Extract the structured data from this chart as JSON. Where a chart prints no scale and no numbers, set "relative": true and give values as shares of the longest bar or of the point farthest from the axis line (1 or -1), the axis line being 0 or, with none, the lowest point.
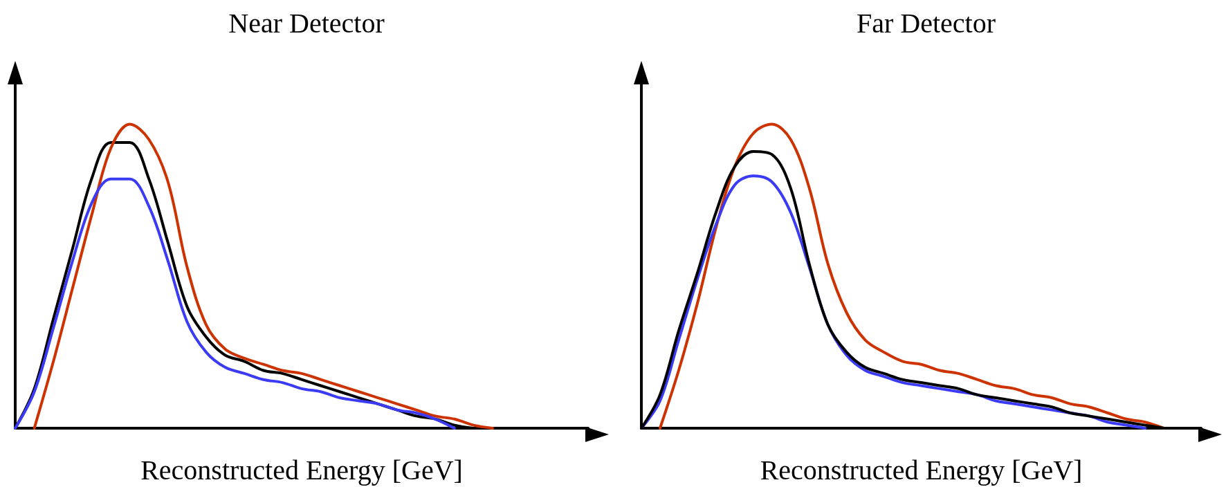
{
  "chart_data": [
    {
      "type": "line",
      "title": "Near Detector",
      "xlabel": "Reconstructed Energy [GeV]",
      "relative": true,
      "line_style": "solid",
      "categories": [
        null,
        null,
        null,
        null,
        null,
        null,
        null,
        null,
        null,
        null,
        null,
        null,
        null,
        null,
        null,
        null,
        null,
        null,
        null,
        null,
        null,
        null,
        null,
        null,
        null,
        null,
        null,
        null,
        null,
        null,
        null
      ],
      "series": [
        {
          "color": "#000000",
          "values": [
            0,
            0.13,
            0.36,
            0.59,
            0.82,
            0.94,
            0.94,
            0.82,
            0.61,
            0.4,
            0.3,
            0.24,
            0.22,
            0.19,
            0.18,
            0.16,
            0.14,
            0.12,
            0.1,
            0.08,
            0.06,
            0.04,
            0.03,
            0.01,
            0,
            null,
            null,
            null,
            null,
            null,
            null
          ]
        },
        {
          "color": "#cc3300",
          "values": [
            null,
            0,
            0.22,
            0.46,
            0.7,
            0.92,
            1,
            0.95,
            0.81,
            0.53,
            0.34,
            0.26,
            0.23,
            0.21,
            0.19,
            0.18,
            0.16,
            0.14,
            0.12,
            0.1,
            0.08,
            0.06,
            0.04,
            0.03,
            0.01,
            0,
            null,
            null,
            null,
            null,
            null
          ]
        },
        {
          "color": "#3b3bf5",
          "values": [
            0,
            0.12,
            0.33,
            0.55,
            0.74,
            0.82,
            0.82,
            0.73,
            0.55,
            0.35,
            0.25,
            0.2,
            0.18,
            0.16,
            0.15,
            0.13,
            0.12,
            0.1,
            0.09,
            0.08,
            0.06,
            0.05,
            0.03,
            0,
            null,
            null,
            null,
            null,
            null,
            null,
            null
          ]
        }
      ]
    },
    {
      "type": "line",
      "title": "Far Detector",
      "xlabel": "Reconstructed Energy [GeV]",
      "relative": true,
      "line_style": "solid",
      "categories": [
        null,
        null,
        null,
        null,
        null,
        null,
        null,
        null,
        null,
        null,
        null,
        null,
        null,
        null,
        null,
        null,
        null,
        null,
        null,
        null,
        null,
        null,
        null,
        null,
        null,
        null,
        null,
        null,
        null,
        null,
        null
      ],
      "series": [
        {
          "color": "#cc3300",
          "values": [
            null,
            0,
            0.19,
            0.41,
            0.66,
            0.86,
            0.97,
            1,
            0.95,
            0.79,
            0.54,
            0.38,
            0.29,
            0.25,
            0.22,
            0.21,
            0.19,
            0.18,
            0.16,
            0.14,
            0.13,
            0.11,
            0.1,
            0.08,
            0.07,
            0.05,
            0.03,
            0.02,
            0,
            null,
            null
          ]
        },
        {
          "color": "#3b3bf5",
          "values": [
            0,
            0.09,
            0.29,
            0.49,
            0.67,
            0.8,
            0.83,
            0.81,
            0.71,
            0.53,
            0.34,
            0.24,
            0.19,
            0.17,
            0.15,
            0.14,
            0.13,
            0.12,
            0.11,
            0.09,
            0.08,
            0.07,
            0.06,
            0.05,
            0.04,
            0.02,
            0.01,
            0,
            null,
            null,
            null
          ]
        },
        {
          "color": "#000000",
          "values": [
            0,
            0.11,
            0.32,
            0.51,
            0.71,
            0.86,
            0.91,
            0.9,
            0.79,
            0.54,
            0.34,
            0.25,
            0.2,
            0.18,
            0.16,
            0.15,
            0.14,
            0.13,
            0.11,
            0.1,
            0.09,
            0.08,
            0.07,
            0.05,
            0.04,
            0.03,
            0.02,
            0.01,
            0,
            null,
            null
          ]
        }
      ]
    }
  ]
}
